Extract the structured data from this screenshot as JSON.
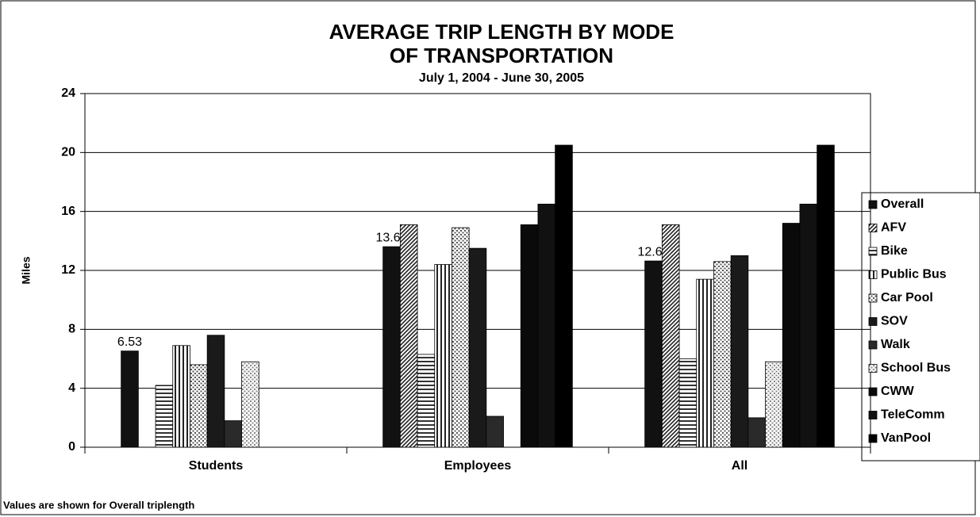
{
  "chart_data": {
    "type": "bar",
    "title": [
      "AVERAGE TRIP LENGTH BY MODE",
      "OF TRANSPORTATION"
    ],
    "subtitle": "July 1, 2004 -  June 30, 2005",
    "y_label": "Miles",
    "note": "Values are shown for Overall triplength",
    "categories": [
      "Students",
      "Employees",
      "All"
    ],
    "ylim": [
      0,
      24
    ],
    "yticks": [
      0,
      4,
      8,
      12,
      16,
      20,
      24
    ],
    "grid": true,
    "legend": "right",
    "series": [
      {
        "name": "Overall",
        "color": "#111111",
        "pattern": "solid",
        "values": [
          6.53,
          13.61,
          12.64
        ],
        "show_values": true
      },
      {
        "name": "AFV",
        "color": "#222222",
        "pattern": "diagonal",
        "values": [
          null,
          15.1,
          15.1
        ]
      },
      {
        "name": "Bike",
        "color": "#333333",
        "pattern": "horizontal",
        "values": [
          4.2,
          6.3,
          6.0
        ]
      },
      {
        "name": "Public Bus",
        "color": "#222222",
        "pattern": "vertical",
        "values": [
          6.9,
          12.4,
          11.4
        ]
      },
      {
        "name": "Car Pool",
        "color": "#555555",
        "pattern": "dots",
        "values": [
          5.6,
          14.9,
          12.6
        ]
      },
      {
        "name": "SOV",
        "color": "#1a1a1a",
        "pattern": "solid",
        "values": [
          7.6,
          13.5,
          13.0
        ]
      },
      {
        "name": "Walk",
        "color": "#2a2a2a",
        "pattern": "solid",
        "values": [
          1.8,
          2.1,
          2.0
        ]
      },
      {
        "name": "School Bus",
        "color": "#888888",
        "pattern": "dots",
        "values": [
          5.8,
          null,
          5.8
        ]
      },
      {
        "name": "CWW",
        "color": "#0a0a0a",
        "pattern": "solid",
        "values": [
          null,
          15.1,
          15.2
        ]
      },
      {
        "name": "TeleComm",
        "color": "#111111",
        "pattern": "solid",
        "values": [
          null,
          16.5,
          16.5
        ]
      },
      {
        "name": "VanPool",
        "color": "#000000",
        "pattern": "solid",
        "values": [
          null,
          20.5,
          20.5
        ]
      }
    ]
  }
}
